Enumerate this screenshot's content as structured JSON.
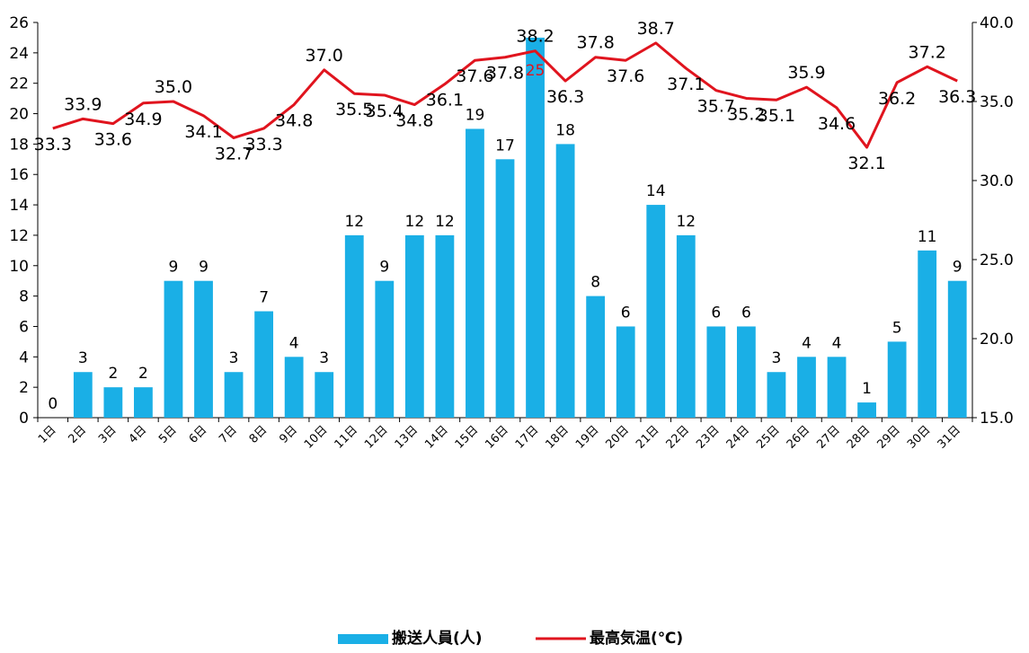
{
  "chart_data": {
    "type": "bar",
    "categories": [
      "1日",
      "2日",
      "3日",
      "4日",
      "5日",
      "6日",
      "7日",
      "8日",
      "9日",
      "10日",
      "11日",
      "12日",
      "13日",
      "14日",
      "15日",
      "16日",
      "17日",
      "18日",
      "19日",
      "20日",
      "21日",
      "22日",
      "23日",
      "24日",
      "25日",
      "26日",
      "27日",
      "28日",
      "29日",
      "30日",
      "31日"
    ],
    "series": [
      {
        "name": "搬送人員(人)",
        "type": "bar",
        "axis": "left",
        "color": "#1AAFE6",
        "values": [
          0,
          3,
          2,
          2,
          9,
          9,
          3,
          7,
          4,
          3,
          12,
          9,
          12,
          12,
          19,
          17,
          25,
          18,
          8,
          6,
          14,
          12,
          6,
          6,
          3,
          4,
          4,
          1,
          5,
          11,
          9
        ],
        "value_labels": [
          "0",
          "3",
          "2",
          "2",
          "9",
          "9",
          "3",
          "7",
          "4",
          "3",
          "12",
          "9",
          "12",
          "12",
          "19",
          "17",
          "25",
          "18",
          "8",
          "6",
          "14",
          "12",
          "6",
          "6",
          "3",
          "4",
          "4",
          "1",
          "5",
          "11",
          "9"
        ]
      },
      {
        "name": "最高気温(℃)",
        "type": "line",
        "axis": "right",
        "color": "#E0141E",
        "values": [
          33.3,
          33.9,
          33.6,
          34.9,
          35.0,
          34.1,
          32.7,
          33.3,
          34.8,
          37.0,
          35.5,
          35.4,
          34.8,
          36.1,
          37.6,
          37.8,
          38.2,
          36.3,
          37.8,
          37.6,
          38.7,
          37.1,
          35.7,
          35.2,
          35.1,
          35.9,
          34.6,
          32.1,
          36.2,
          37.2,
          36.3
        ],
        "value_labels": [
          "33.3",
          "33.9",
          "33.6",
          "34.9",
          "35.0",
          "34.1",
          "32.7",
          "33.3",
          "34.8",
          "37.0",
          "35.5",
          "35.4",
          "34.8",
          "36.1",
          "37.6",
          "37.8",
          "38.2",
          "36.3",
          "37.8",
          "37.6",
          "38.7",
          "37.1",
          "35.7",
          "35.2",
          "35.1",
          "35.9",
          "34.6",
          "32.1",
          "36.2",
          "37.2",
          "36.3"
        ]
      }
    ],
    "highlight": {
      "index": 16,
      "color": "#E0141E"
    },
    "y_left": {
      "ylim": [
        0,
        26
      ],
      "ticks": [
        "0",
        "2",
        "4",
        "6",
        "8",
        "10",
        "12",
        "14",
        "16",
        "18",
        "20",
        "22",
        "24",
        "26"
      ]
    },
    "y_right": {
      "ylim": [
        15,
        40
      ],
      "ticks": [
        "15.0",
        "20.0",
        "25.0",
        "30.0",
        "35.0",
        "40.0"
      ]
    },
    "grid": false,
    "legend": {
      "placement": "bottom",
      "items": [
        {
          "label": "搬送人員(人)",
          "color": "#1AAFE6",
          "shape": "bar"
        },
        {
          "label": "最高気温(℃)",
          "color": "#E0141E",
          "shape": "line"
        }
      ]
    }
  }
}
